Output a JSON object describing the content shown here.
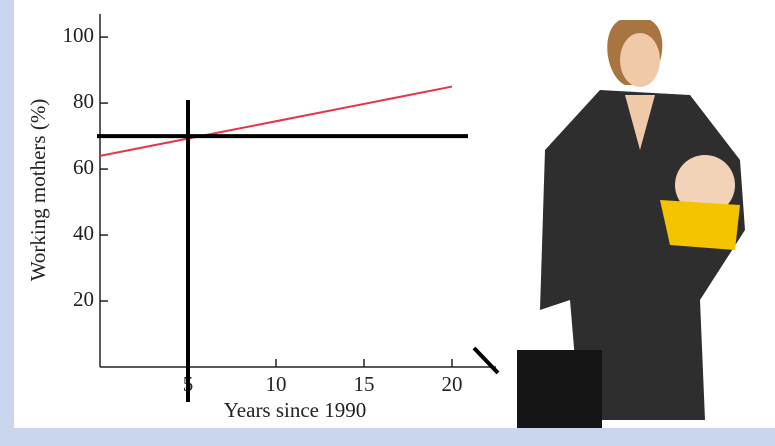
{
  "chart_data": {
    "type": "line",
    "x_label": "Years since 1990",
    "y_label": "Working mothers (%)",
    "x": [
      0,
      20
    ],
    "series": [
      {
        "color": "#e8344a",
        "values": [
          64,
          85
        ]
      }
    ],
    "xlim": [
      0,
      22.5
    ],
    "ylim": [
      0,
      107
    ],
    "xticks": [
      5,
      10,
      15,
      20
    ],
    "yticks": [
      20,
      40,
      60,
      80,
      100
    ],
    "reference_lines": [
      {
        "axis": "x",
        "value": 5,
        "color": "#000000"
      },
      {
        "axis": "y",
        "value": 70,
        "color": "#000000"
      }
    ]
  }
}
